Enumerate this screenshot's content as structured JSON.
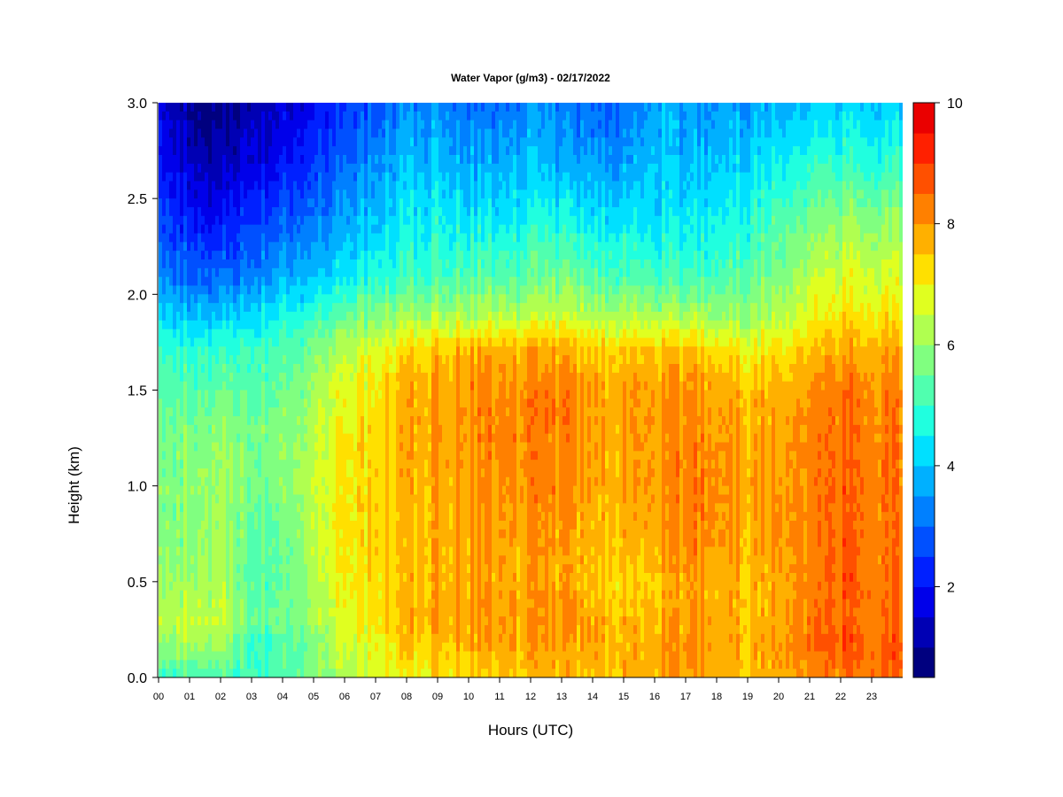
{
  "chart_data": {
    "type": "heatmap",
    "title": "Water Vapor (g/m3) - 02/17/2022",
    "xlabel": "Hours (UTC)",
    "ylabel": "Height (km)",
    "x_tick_labels": [
      "00",
      "01",
      "02",
      "03",
      "04",
      "05",
      "06",
      "07",
      "08",
      "09",
      "10",
      "11",
      "12",
      "13",
      "14",
      "15",
      "16",
      "17",
      "18",
      "19",
      "20",
      "21",
      "22",
      "23"
    ],
    "x_range": [
      0,
      23.85
    ],
    "y_tick_labels": [
      "0.0",
      "0.5",
      "1.0",
      "1.5",
      "2.0",
      "2.5",
      "3.0"
    ],
    "y_ticks": [
      0.0,
      0.5,
      1.0,
      1.5,
      2.0,
      2.5,
      3.0
    ],
    "y_range": [
      0,
      3.0
    ],
    "colorbar": {
      "range": [
        0.5,
        10
      ],
      "levels": [
        0.5,
        1,
        1.5,
        2,
        2.5,
        3,
        3.5,
        4,
        4.5,
        5,
        5.5,
        6,
        6.5,
        7,
        7.5,
        8,
        8.5,
        9,
        9.5,
        10
      ],
      "tick_values": [
        2,
        4,
        6,
        8,
        10
      ],
      "tick_labels": [
        "2",
        "4",
        "6",
        "8",
        "10"
      ],
      "colors": [
        "#00007f",
        "#0000b4",
        "#0000ea",
        "#0020ff",
        "#0050ff",
        "#0080ff",
        "#00b0ff",
        "#00e0ff",
        "#20ffdf",
        "#50ffaf",
        "#80ff80",
        "#b0ff50",
        "#e0ff20",
        "#ffe000",
        "#ffb000",
        "#ff8000",
        "#ff5000",
        "#ff2000",
        "#ea0000",
        "#b40000"
      ]
    },
    "heights": [
      0.0,
      0.2,
      0.3,
      0.5,
      0.7,
      1.0,
      1.3,
      1.5,
      1.7,
      1.9,
      2.1,
      2.4,
      2.7,
      3.0
    ],
    "profiles": [
      {
        "hour": 0,
        "values": [
          5.2,
          6.0,
          6.5,
          6.0,
          5.8,
          5.8,
          5.6,
          5.3,
          5.0,
          4.2,
          3.3,
          2.6,
          2.1,
          1.7
        ]
      },
      {
        "hour": 1,
        "values": [
          5.3,
          6.3,
          6.6,
          6.2,
          6.0,
          6.0,
          5.8,
          5.4,
          5.0,
          4.0,
          3.0,
          2.2,
          1.5,
          1.0
        ]
      },
      {
        "hour": 2,
        "values": [
          5.3,
          6.3,
          6.5,
          6.2,
          6.2,
          6.2,
          5.9,
          5.5,
          5.0,
          4.0,
          3.0,
          2.0,
          1.2,
          0.8
        ]
      },
      {
        "hour": 3,
        "values": [
          5.0,
          5.0,
          5.5,
          5.3,
          5.3,
          5.6,
          5.6,
          5.3,
          5.0,
          4.2,
          3.2,
          2.4,
          1.6,
          1.2
        ]
      },
      {
        "hour": 4,
        "values": [
          5.2,
          5.3,
          5.6,
          5.5,
          5.5,
          5.8,
          5.8,
          5.5,
          5.2,
          4.6,
          3.8,
          2.8,
          2.0,
          1.5
        ]
      },
      {
        "hour": 5,
        "values": [
          6.0,
          5.8,
          6.3,
          6.4,
          6.6,
          6.6,
          6.5,
          6.2,
          5.8,
          5.0,
          4.0,
          3.2,
          2.5,
          2.0
        ]
      },
      {
        "hour": 6,
        "values": [
          6.3,
          6.6,
          6.8,
          7.0,
          7.1,
          7.1,
          7.0,
          6.8,
          6.4,
          5.4,
          4.4,
          3.6,
          3.0,
          2.4
        ]
      },
      {
        "hour": 7,
        "values": [
          6.6,
          7.0,
          7.2,
          7.3,
          7.4,
          7.4,
          7.3,
          7.1,
          6.8,
          5.8,
          4.8,
          4.0,
          3.4,
          2.8
        ]
      },
      {
        "hour": 8,
        "values": [
          7.0,
          7.6,
          7.8,
          7.6,
          7.6,
          7.7,
          7.8,
          7.8,
          7.4,
          6.0,
          5.0,
          4.4,
          3.9,
          3.4
        ]
      },
      {
        "hour": 9,
        "values": [
          7.2,
          7.8,
          7.9,
          7.8,
          7.8,
          7.9,
          8.0,
          8.0,
          7.6,
          6.2,
          5.2,
          4.6,
          4.0,
          3.6
        ]
      },
      {
        "hour": 10,
        "values": [
          7.3,
          7.8,
          8.0,
          7.9,
          7.9,
          8.0,
          8.1,
          8.1,
          7.7,
          6.2,
          5.3,
          4.4,
          3.6,
          3.0
        ]
      },
      {
        "hour": 11,
        "values": [
          7.4,
          7.8,
          7.9,
          7.8,
          7.8,
          8.0,
          8.1,
          8.1,
          7.7,
          6.2,
          5.2,
          4.3,
          3.6,
          3.0
        ]
      },
      {
        "hour": 12,
        "values": [
          7.5,
          7.9,
          8.0,
          7.8,
          7.9,
          8.1,
          8.2,
          8.2,
          7.8,
          6.3,
          5.4,
          4.6,
          3.9,
          3.4
        ]
      },
      {
        "hour": 13,
        "values": [
          7.5,
          7.8,
          7.9,
          7.7,
          7.8,
          8.0,
          8.1,
          8.1,
          7.7,
          6.3,
          5.4,
          4.4,
          3.5,
          3.0
        ]
      },
      {
        "hour": 14,
        "values": [
          7.6,
          7.8,
          7.8,
          7.6,
          7.7,
          7.8,
          7.9,
          7.9,
          7.5,
          6.2,
          5.3,
          4.4,
          3.6,
          3.0
        ]
      },
      {
        "hour": 15,
        "values": [
          7.6,
          7.7,
          7.6,
          7.3,
          7.6,
          7.8,
          7.9,
          7.9,
          7.5,
          6.2,
          5.2,
          4.3,
          3.5,
          3.0
        ]
      },
      {
        "hour": 16,
        "values": [
          7.7,
          7.8,
          7.7,
          7.5,
          7.8,
          8.0,
          8.0,
          7.9,
          7.5,
          6.1,
          5.0,
          4.3,
          4.0,
          3.8
        ]
      },
      {
        "hour": 17,
        "values": [
          7.9,
          8.0,
          7.9,
          7.8,
          8.2,
          8.2,
          8.1,
          8.0,
          7.5,
          6.0,
          5.0,
          4.3,
          3.7,
          3.4
        ]
      },
      {
        "hour": 18,
        "values": [
          7.8,
          7.9,
          7.8,
          7.7,
          8.0,
          8.1,
          8.0,
          7.9,
          7.3,
          6.0,
          5.2,
          4.5,
          4.0,
          3.5
        ]
      },
      {
        "hour": 19,
        "values": [
          7.6,
          7.7,
          7.6,
          7.6,
          7.8,
          7.8,
          7.8,
          7.6,
          7.0,
          6.0,
          5.4,
          4.8,
          4.2,
          3.6
        ]
      },
      {
        "hour": 20,
        "values": [
          7.8,
          8.0,
          7.9,
          7.8,
          8.0,
          8.0,
          7.9,
          7.7,
          7.2,
          6.3,
          5.8,
          5.2,
          4.5,
          3.8
        ]
      },
      {
        "hour": 21,
        "values": [
          8.1,
          8.5,
          8.3,
          8.2,
          8.2,
          8.2,
          8.2,
          8.0,
          7.5,
          6.8,
          6.4,
          5.6,
          4.8,
          4.0
        ]
      },
      {
        "hour": 22,
        "values": [
          8.4,
          8.9,
          8.6,
          8.8,
          8.8,
          8.7,
          8.6,
          8.5,
          8.0,
          7.2,
          6.8,
          6.0,
          5.0,
          4.2
        ]
      },
      {
        "hour": 23,
        "values": [
          8.5,
          8.6,
          8.4,
          8.4,
          8.4,
          8.4,
          8.3,
          8.2,
          7.8,
          7.1,
          6.7,
          5.8,
          4.9,
          4.1
        ]
      },
      {
        "hour": 23.85,
        "values": [
          8.6,
          8.6,
          8.4,
          8.3,
          8.3,
          8.3,
          8.2,
          8.1,
          7.7,
          7.0,
          6.6,
          5.7,
          4.8,
          4.0
        ]
      }
    ],
    "grid": false,
    "legend": "colorbar-right"
  }
}
